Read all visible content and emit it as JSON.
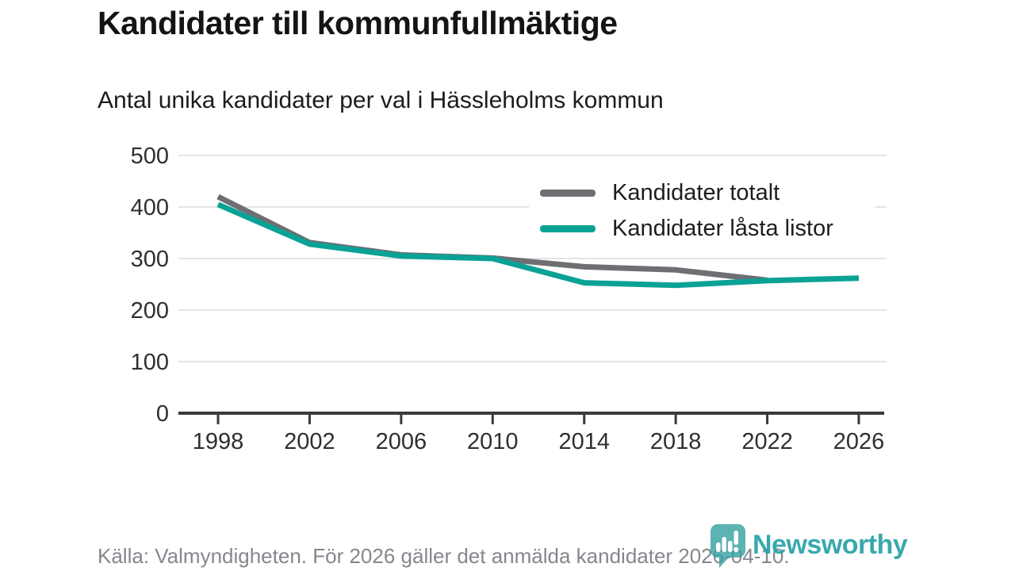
{
  "header": {
    "title": "Kandidater till kommunfullmäktige",
    "subtitle": "Antal unika kandidater per val i Hässleholms kommun"
  },
  "footer": {
    "source": "Källa: Valmyndigheten. För 2026 gäller det anmälda kandidater 2026-04-10."
  },
  "branding": {
    "name": "Newsworthy",
    "color": "#28a2a7",
    "icon": "newsworthy-speech-bubble-barchart-icon"
  },
  "chart_data": {
    "type": "line",
    "x": [
      "1998",
      "2002",
      "2006",
      "2010",
      "2014",
      "2018",
      "2022",
      "2026"
    ],
    "series": [
      {
        "name": "Kandidater totalt",
        "color": "#6e6e73",
        "values": [
          420,
          331,
          307,
          301,
          284,
          278,
          258,
          null
        ]
      },
      {
        "name": "Kandidater låsta listor",
        "color": "#0ba296",
        "values": [
          405,
          328,
          305,
          300,
          253,
          248,
          257,
          262
        ]
      }
    ],
    "title": "Kandidater till kommunfullmäktige",
    "subtitle": "Antal unika kandidater per val i Hässleholms kommun",
    "xlabel": "",
    "ylabel": "",
    "ylim": [
      0,
      500
    ],
    "ytick_step": 100,
    "grid": "horizontal",
    "grid_color": "#e4e4e6",
    "axis_color": "#3a3a3a",
    "tick_label_color": "#2f2f2f",
    "legend_position": "top-right-inset"
  }
}
